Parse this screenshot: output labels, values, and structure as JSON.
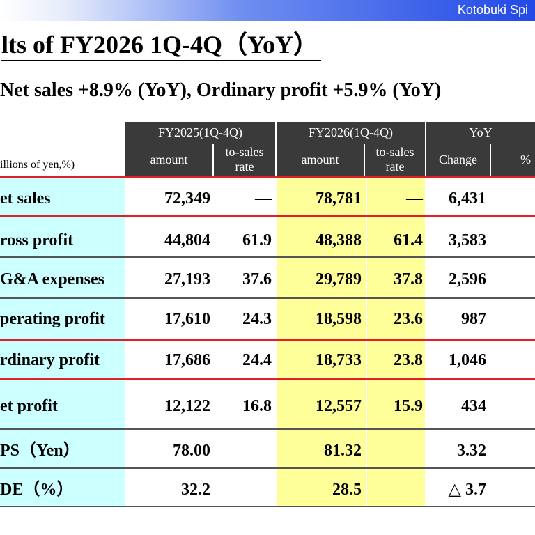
{
  "company": "Kotobuki Spi",
  "title": "lts of FY2026 1Q-4Q（YoY）",
  "subtitle": "Net sales +8.9% (YoY), Ordinary profit +5.9% (YoY)",
  "unit_label": "illions of yen,%)",
  "headers": {
    "fy2025": "FY2025(1Q-4Q)",
    "fy2026": "FY2026(1Q-4Q)",
    "yoy": "YoY",
    "amount": "amount",
    "to_sales_1": "to-sales",
    "to_sales_2": "rate",
    "change": "Change",
    "percent": "%"
  },
  "rows": [
    {
      "label": "et sales",
      "a1": "72,349",
      "r1": "—",
      "a2": "78,781",
      "r2": "—",
      "ch": "6,431"
    },
    {
      "label": "ross profit",
      "a1": "44,804",
      "r1": "61.9",
      "a2": "48,388",
      "r2": "61.4",
      "ch": "3,583"
    },
    {
      "label": "G&A expenses",
      "a1": "27,193",
      "r1": "37.6",
      "a2": "29,789",
      "r2": "37.8",
      "ch": "2,596"
    },
    {
      "label": "perating profit",
      "a1": "17,610",
      "r1": "24.3",
      "a2": "18,598",
      "r2": "23.6",
      "ch": "987"
    },
    {
      "label": "rdinary profit",
      "a1": "17,686",
      "r1": "24.4",
      "a2": "18,733",
      "r2": "23.8",
      "ch": "1,046"
    },
    {
      "label": "et profit",
      "a1": "12,122",
      "r1": "16.8",
      "a2": "12,557",
      "r2": "15.9",
      "ch": "434"
    },
    {
      "label": "PS（Yen）",
      "a1": "78.00",
      "r1": "",
      "a2": "81.32",
      "r2": "",
      "ch": "3.32"
    },
    {
      "label": "DE（%）",
      "a1": "32.2",
      "r1": "",
      "a2": "28.5",
      "r2": "",
      "ch": "△ 3.7"
    }
  ]
}
